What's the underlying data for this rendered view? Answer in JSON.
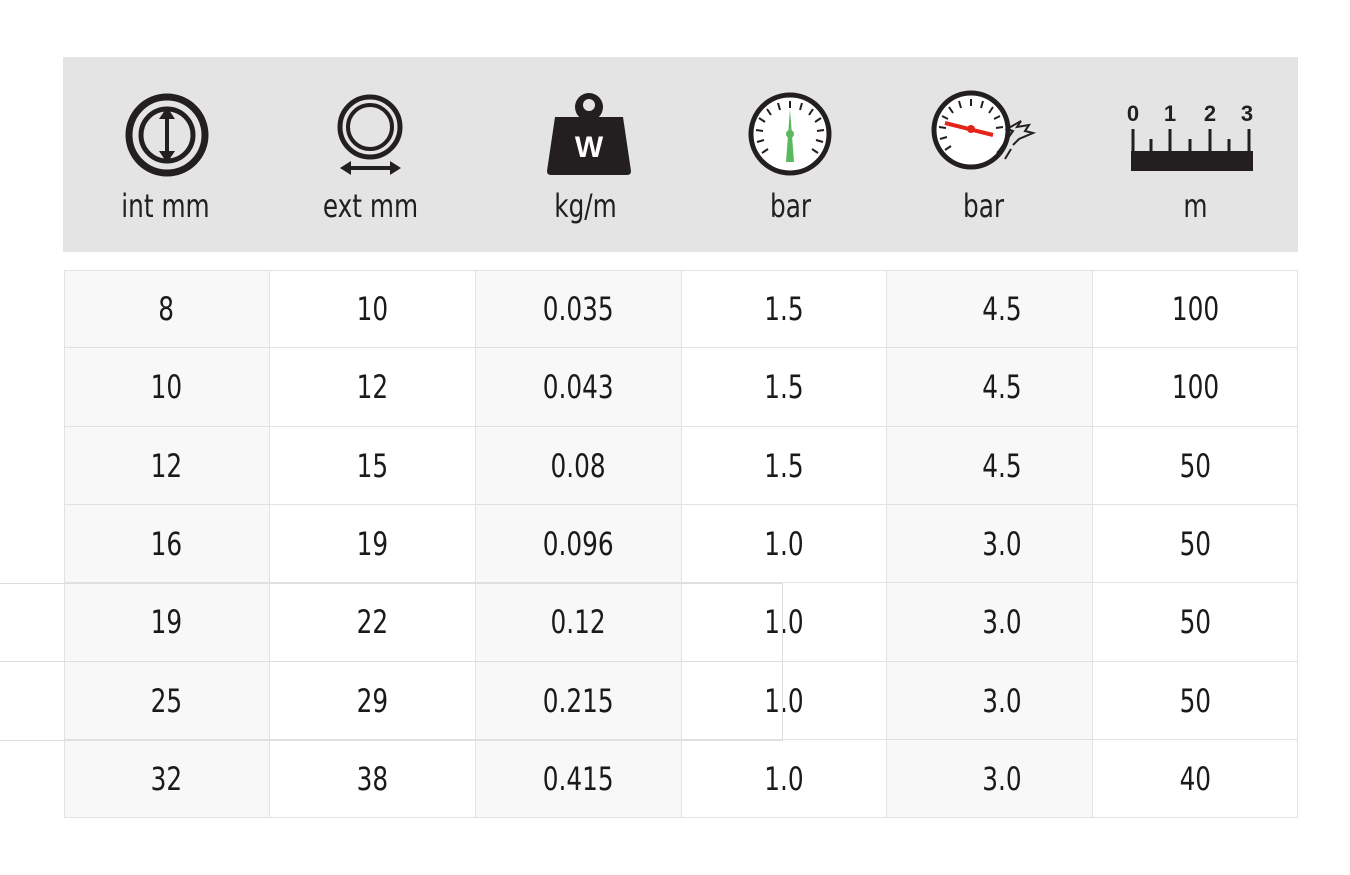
{
  "header": {
    "columns": [
      {
        "icon": "inner-diameter-icon",
        "label": "int mm"
      },
      {
        "icon": "outer-diameter-icon",
        "label": "ext mm"
      },
      {
        "icon": "weight-icon",
        "label": "kg/m",
        "icon_text": "W"
      },
      {
        "icon": "pressure-gauge-icon",
        "label": "bar"
      },
      {
        "icon": "burst-pressure-gauge-icon",
        "label": "bar"
      },
      {
        "icon": "ruler-icon",
        "label": "m",
        "ruler_numbers": [
          "0",
          "1",
          "2",
          "3"
        ]
      }
    ]
  },
  "table": {
    "rows": [
      [
        "8",
        "10",
        "0.035",
        "1.5",
        "4.5",
        "100"
      ],
      [
        "10",
        "12",
        "0.043",
        "1.5",
        "4.5",
        "100"
      ],
      [
        "12",
        "15",
        "0.08",
        "1.5",
        "4.5",
        "50"
      ],
      [
        "16",
        "19",
        "0.096",
        "1.0",
        "3.0",
        "50"
      ],
      [
        "19",
        "22",
        "0.12",
        "1.0",
        "3.0",
        "50"
      ],
      [
        "25",
        "29",
        "0.215",
        "1.0",
        "3.0",
        "50"
      ],
      [
        "32",
        "38",
        "0.415",
        "1.0",
        "3.0",
        "40"
      ]
    ]
  },
  "colors": {
    "header_background": "#e3e4e3",
    "shaded_cell": "#f8f8f8",
    "icon_dark": "#231f20",
    "gauge_needle_green": "#5cb85c",
    "gauge_needle_red": "#e1251b"
  }
}
